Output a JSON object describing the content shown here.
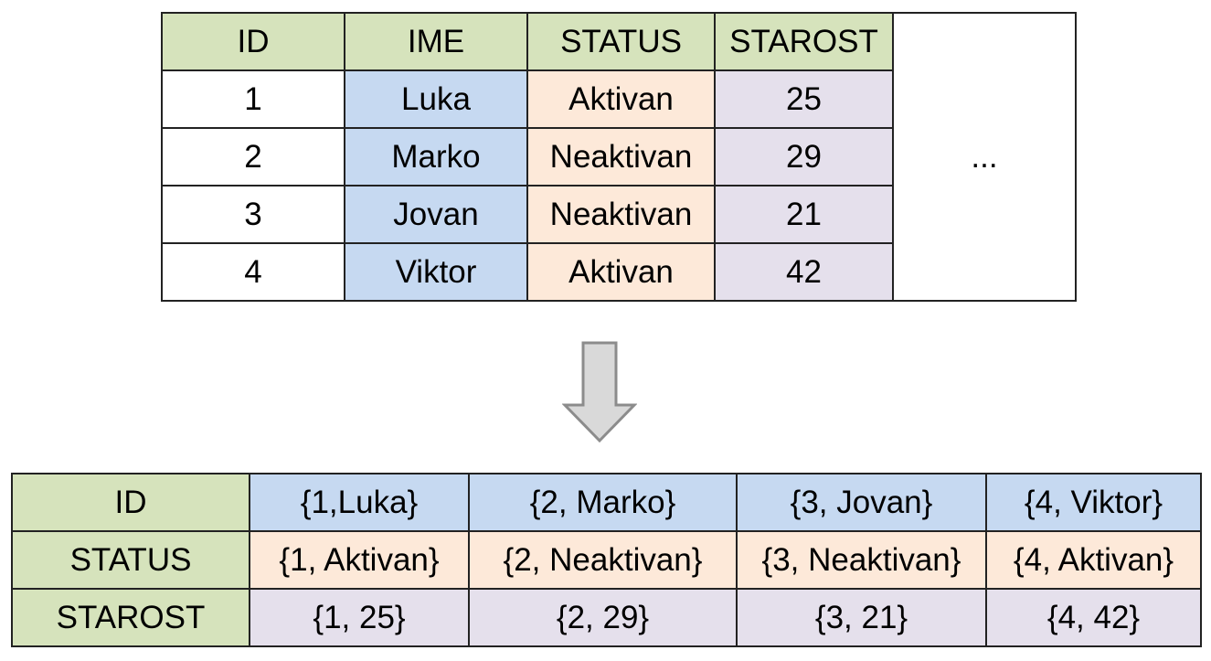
{
  "row_table": {
    "headers": [
      "ID",
      "IME",
      "STATUS",
      "STAROST"
    ],
    "rows": [
      [
        "1",
        "Luka",
        "Aktivan",
        "25"
      ],
      [
        "2",
        "Marko",
        "Neaktivan",
        "29"
      ],
      [
        "3",
        "Jovan",
        "Neaktivan",
        "21"
      ],
      [
        "4",
        "Viktor",
        "Aktivan",
        "42"
      ]
    ],
    "ellipsis": "..."
  },
  "col_table": {
    "rows": [
      {
        "label": "ID",
        "cells": [
          "{1,Luka}",
          "{2, Marko}",
          "{3, Jovan}",
          "{4, Viktor}"
        ]
      },
      {
        "label": "STATUS",
        "cells": [
          "{1, Aktivan}",
          "{2, Neaktivan}",
          "{3, Neaktivan}",
          "{4, Aktivan}"
        ]
      },
      {
        "label": "STAROST",
        "cells": [
          "{1, 25}",
          "{2, 29}",
          "{3, 21}",
          "{4, 42}"
        ]
      }
    ]
  },
  "colors": {
    "header_green": "#d6e3bc",
    "name_blue": "#c6d9f1",
    "status_peach": "#fde9d9",
    "age_lavender": "#e5e0ec",
    "arrow_fill": "#d9d9d9",
    "arrow_stroke": "#8c8c8c"
  },
  "icons": {
    "arrow": "down-arrow-icon"
  }
}
